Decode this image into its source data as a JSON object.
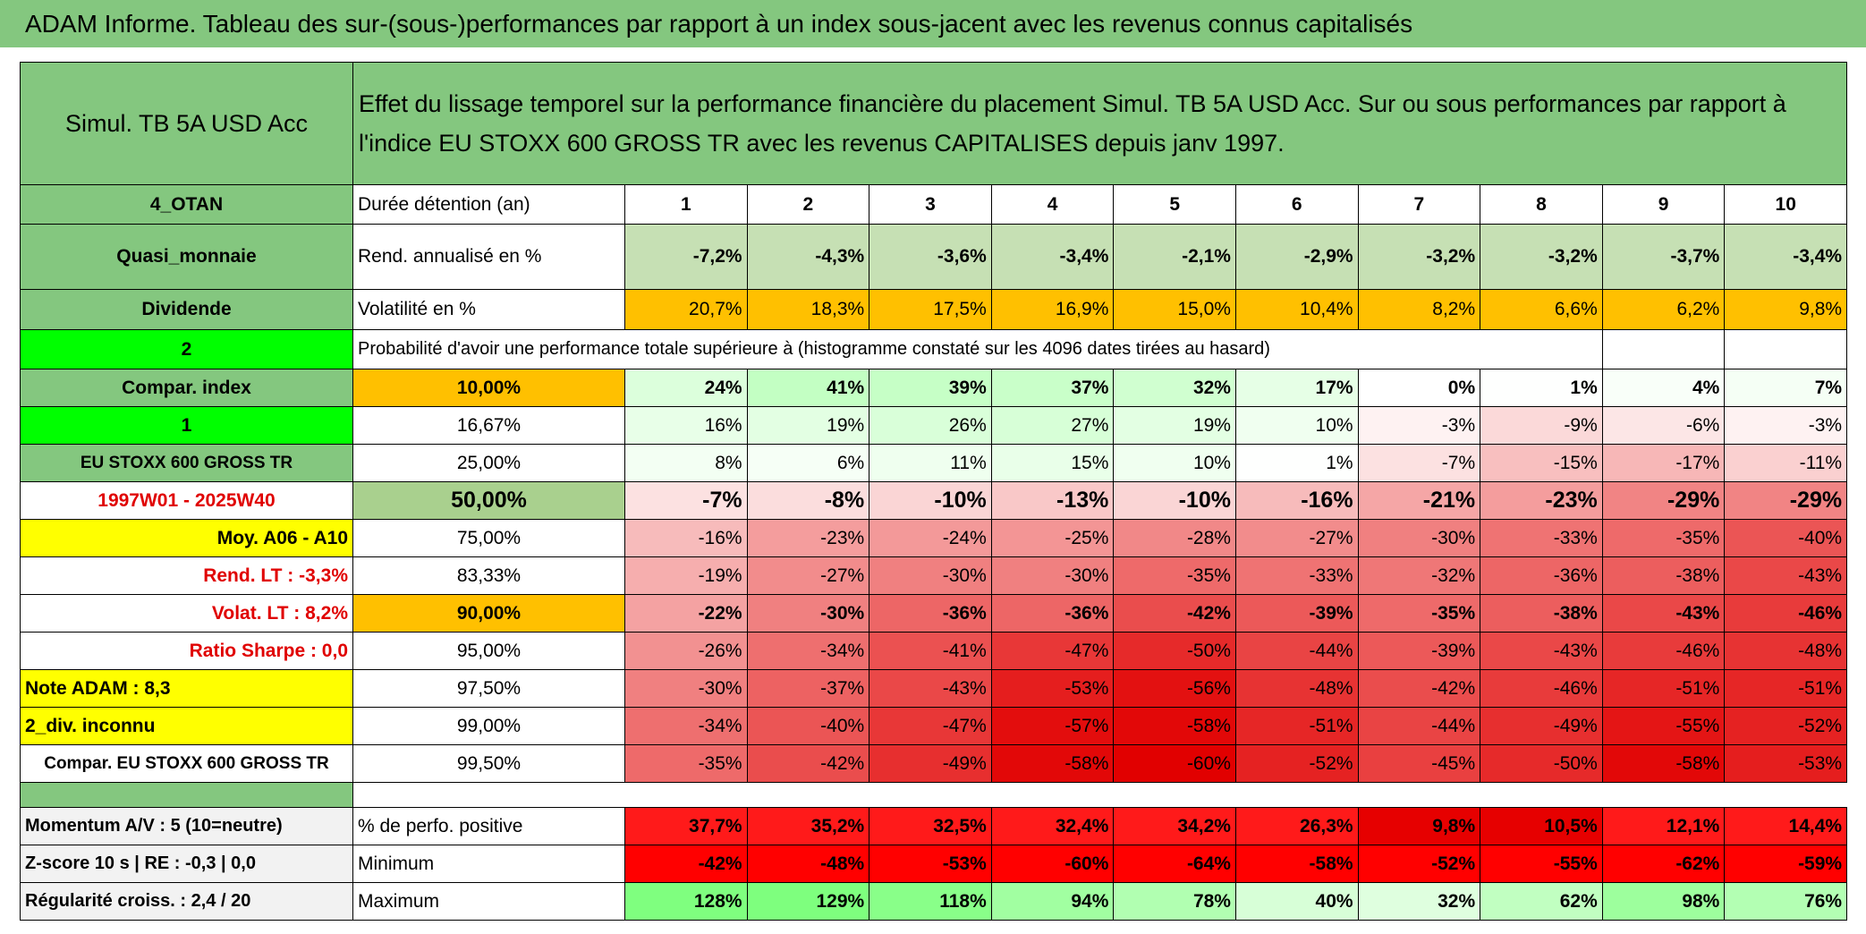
{
  "title": "ADAM Informe. Tableau des sur-(sous-)performances par rapport à un index sous-jacent avec les revenus connus capitalisés",
  "header": {
    "name": "Simul. TB 5A USD Acc",
    "description": "Effet du lissage temporel sur la performance financière du placement Simul. TB 5A USD Acc. Sur ou sous performances par rapport à l'indice EU STOXX 600 GROSS TR avec les revenus CAPITALISES depuis janv 1997."
  },
  "table": {
    "rows": [
      [
        "4_OTAN",
        "Durée détention (an)",
        "1",
        "2",
        "3",
        "4",
        "5",
        "6",
        "7",
        "8",
        "9",
        "10"
      ],
      [
        "Quasi_monnaie",
        "Rend. annualisé en %",
        "-7,2%",
        "-4,3%",
        "-3,6%",
        "-3,4%",
        "-2,1%",
        "-2,9%",
        "-3,2%",
        "-3,2%",
        "-3,7%",
        "-3,4%"
      ],
      [
        "Dividende",
        "Volatilité en %",
        "20,7%",
        "18,3%",
        "17,5%",
        "16,9%",
        "15,0%",
        "10,4%",
        "8,2%",
        "6,6%",
        "6,2%",
        "9,8%"
      ],
      [
        "2",
        "Probabilité d'avoir une performance totale supérieure à (histogramme constaté sur les 4096 dates tirées au hasard)"
      ],
      [
        "Compar. index",
        "10,00%",
        "24%",
        "41%",
        "39%",
        "37%",
        "32%",
        "17%",
        "0%",
        "1%",
        "4%",
        "7%"
      ],
      [
        "1",
        "16,67%",
        "16%",
        "19%",
        "26%",
        "27%",
        "19%",
        "10%",
        "-3%",
        "-9%",
        "-6%",
        "-3%"
      ],
      [
        "EU STOXX 600 GROSS TR",
        "25,00%",
        "8%",
        "6%",
        "11%",
        "15%",
        "10%",
        "1%",
        "-7%",
        "-15%",
        "-17%",
        "-11%"
      ],
      [
        "1997W01 - 2025W40",
        "50,00%",
        "-7%",
        "-8%",
        "-10%",
        "-13%",
        "-10%",
        "-16%",
        "-21%",
        "-23%",
        "-29%",
        "-29%"
      ],
      [
        "Moy. A06 - A10",
        "75,00%",
        "-16%",
        "-23%",
        "-24%",
        "-25%",
        "-28%",
        "-27%",
        "-30%",
        "-33%",
        "-35%",
        "-40%"
      ],
      [
        "Rend. LT :   -3,3%",
        "83,33%",
        "-19%",
        "-27%",
        "-30%",
        "-30%",
        "-35%",
        "-33%",
        "-32%",
        "-36%",
        "-38%",
        "-43%"
      ],
      [
        "Volat. LT :   8,2%",
        "90,00%",
        "-22%",
        "-30%",
        "-36%",
        "-36%",
        "-42%",
        "-39%",
        "-35%",
        "-38%",
        "-43%",
        "-46%"
      ],
      [
        "Ratio Sharpe :    0,0",
        "95,00%",
        "-26%",
        "-34%",
        "-41%",
        "-47%",
        "-50%",
        "-44%",
        "-39%",
        "-43%",
        "-46%",
        "-48%"
      ],
      [
        "Note ADAM : 8,3",
        "97,50%",
        "-30%",
        "-37%",
        "-43%",
        "-53%",
        "-56%",
        "-48%",
        "-42%",
        "-46%",
        "-51%",
        "-51%"
      ],
      [
        "2_div. inconnu",
        "99,00%",
        "-34%",
        "-40%",
        "-47%",
        "-57%",
        "-58%",
        "-51%",
        "-44%",
        "-49%",
        "-55%",
        "-52%"
      ],
      [
        "Compar. EU STOXX 600 GROSS TR",
        "99,50%",
        "-35%",
        "-42%",
        "-49%",
        "-58%",
        "-60%",
        "-52%",
        "-45%",
        "-50%",
        "-58%",
        "-53%"
      ]
    ]
  },
  "footer": {
    "rows": [
      [
        "Momentum A/V : 5 (10=neutre)",
        "% de perfo. positive",
        "37,7%",
        "35,2%",
        "32,5%",
        "32,4%",
        "34,2%",
        "26,3%",
        "9,8%",
        "10,5%",
        "12,1%",
        "14,4%"
      ],
      [
        "Z-score 10 s | RE : -0,3 | 0,0",
        "Minimum",
        "-42%",
        "-48%",
        "-53%",
        "-60%",
        "-64%",
        "-58%",
        "-52%",
        "-55%",
        "-62%",
        "-59%"
      ],
      [
        "Régularité croiss. : 2,4 / 20",
        "Maximum",
        "128%",
        "129%",
        "118%",
        "94%",
        "78%",
        "40%",
        "32%",
        "62%",
        "98%",
        "76%"
      ]
    ]
  }
}
